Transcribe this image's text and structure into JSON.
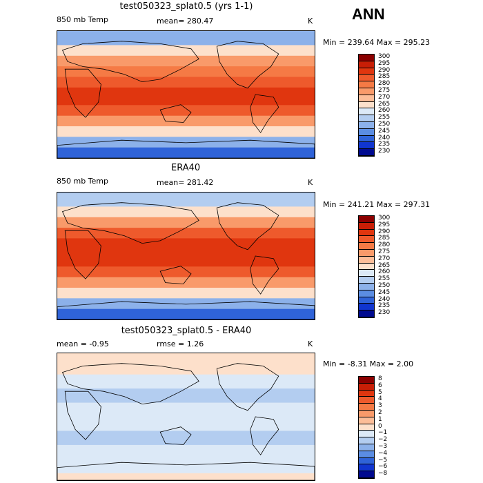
{
  "header": {
    "season": "ANN"
  },
  "chart_data": [
    {
      "type": "heatmap",
      "title": "test050323_splat0.5 (yrs 1-1)",
      "variable": "850 mb Temp",
      "mean_text": "mean= 280.47",
      "units": "K",
      "stats": "Min = 239.64  Max = 295.23",
      "colorbar_levels": [
        "300",
        "295",
        "290",
        "285",
        "280",
        "275",
        "270",
        "265",
        "260",
        "255",
        "250",
        "245",
        "240",
        "235",
        "230"
      ],
      "colorbar_colors": [
        "#8b0000",
        "#c81e06",
        "#e0360f",
        "#ee5a2c",
        "#f57a45",
        "#f99a6a",
        "#fcbd98",
        "#fde0cb",
        "#dce9f7",
        "#b3cdf0",
        "#8cb1ea",
        "#5b8de2",
        "#2f63d8",
        "#1035cf",
        "#000a8f"
      ],
      "bands": [
        {
          "lat": 90,
          "value": 247
        },
        {
          "lat": 70,
          "value": 260
        },
        {
          "lat": 55,
          "value": 270
        },
        {
          "lat": 40,
          "value": 280
        },
        {
          "lat": 25,
          "value": 287
        },
        {
          "lat": 10,
          "value": 292
        },
        {
          "lat": 0,
          "value": 292
        },
        {
          "lat": -15,
          "value": 290
        },
        {
          "lat": -30,
          "value": 282
        },
        {
          "lat": -45,
          "value": 272
        },
        {
          "lat": -60,
          "value": 260
        },
        {
          "lat": -75,
          "value": 245
        },
        {
          "lat": -90,
          "value": 240
        }
      ]
    },
    {
      "type": "heatmap",
      "title": "ERA40",
      "variable": "850 mb Temp",
      "mean_text": "mean= 281.42",
      "units": "K",
      "stats": "Min = 241.21  Max = 297.31",
      "colorbar_levels": [
        "300",
        "295",
        "290",
        "285",
        "280",
        "275",
        "270",
        "265",
        "260",
        "255",
        "250",
        "245",
        "240",
        "235",
        "230"
      ],
      "colorbar_colors": [
        "#8b0000",
        "#c81e06",
        "#e0360f",
        "#ee5a2c",
        "#f57a45",
        "#f99a6a",
        "#fcbd98",
        "#fde0cb",
        "#dce9f7",
        "#b3cdf0",
        "#8cb1ea",
        "#5b8de2",
        "#2f63d8",
        "#1035cf",
        "#000a8f"
      ],
      "bands": [
        {
          "lat": 90,
          "value": 250
        },
        {
          "lat": 70,
          "value": 262
        },
        {
          "lat": 55,
          "value": 272
        },
        {
          "lat": 40,
          "value": 281
        },
        {
          "lat": 25,
          "value": 289
        },
        {
          "lat": 10,
          "value": 293
        },
        {
          "lat": 0,
          "value": 293
        },
        {
          "lat": -15,
          "value": 291
        },
        {
          "lat": -30,
          "value": 284
        },
        {
          "lat": -45,
          "value": 274
        },
        {
          "lat": -60,
          "value": 262
        },
        {
          "lat": -75,
          "value": 245
        },
        {
          "lat": -90,
          "value": 238
        }
      ]
    },
    {
      "type": "heatmap",
      "title": "test050323_splat0.5 - ERA40",
      "mean_text": "mean =  -0.95",
      "rmse_text": "rmse =   1.26",
      "units": "K",
      "stats": "Min =  -8.31  Max =   2.00",
      "colorbar_levels": [
        "8",
        "6",
        "5",
        "4",
        "3",
        "2",
        "1",
        "0",
        "−1",
        "−2",
        "−3",
        "−4",
        "−5",
        "−6",
        "−8"
      ],
      "colorbar_colors": [
        "#8b0000",
        "#c81e06",
        "#e0360f",
        "#ee5a2c",
        "#f57a45",
        "#f99a6a",
        "#fcbd98",
        "#fde0cb",
        "#dce9f7",
        "#b3cdf0",
        "#8cb1ea",
        "#5b8de2",
        "#2f63d8",
        "#1035cf",
        "#000a8f"
      ],
      "bands": [
        {
          "lat": 90,
          "value": 0.5
        },
        {
          "lat": 60,
          "value": 0.2
        },
        {
          "lat": 40,
          "value": -1.2
        },
        {
          "lat": 20,
          "value": -1.0
        },
        {
          "lat": 0,
          "value": -0.9
        },
        {
          "lat": -20,
          "value": -1.1
        },
        {
          "lat": -40,
          "value": -1.3
        },
        {
          "lat": -60,
          "value": -0.6
        },
        {
          "lat": -80,
          "value": 0.3
        },
        {
          "lat": -90,
          "value": 0.1
        }
      ]
    }
  ]
}
